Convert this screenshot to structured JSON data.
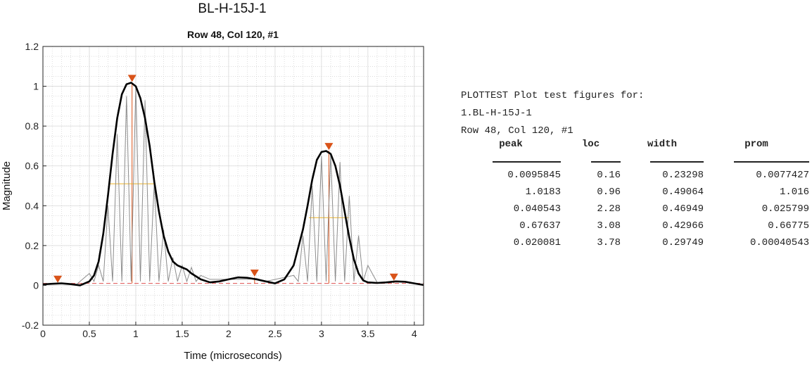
{
  "figure_title": "BL-H-15J-1",
  "chart_data": {
    "type": "line",
    "title": "Row 48, Col 120, #1",
    "xlabel": "Time (microseconds)",
    "ylabel": "Magnitude",
    "xlim": [
      0,
      4.1
    ],
    "ylim": [
      -0.2,
      1.2
    ],
    "x_ticks": [
      0,
      0.5,
      1,
      1.5,
      2,
      2.5,
      3,
      3.5,
      4
    ],
    "y_ticks": [
      -0.2,
      0,
      0.2,
      0.4,
      0.6,
      0.8,
      1,
      1.2
    ],
    "grid": true,
    "minor_grid": true,
    "series": [
      {
        "role": "envelope",
        "color": "#000000",
        "x": [
          0,
          0.1,
          0.2,
          0.3,
          0.4,
          0.5,
          0.55,
          0.6,
          0.65,
          0.7,
          0.75,
          0.8,
          0.85,
          0.9,
          0.95,
          1.0,
          1.05,
          1.1,
          1.15,
          1.2,
          1.25,
          1.3,
          1.35,
          1.4,
          1.45,
          1.5,
          1.55,
          1.6,
          1.7,
          1.8,
          1.9,
          2.0,
          2.1,
          2.2,
          2.3,
          2.4,
          2.5,
          2.6,
          2.7,
          2.8,
          2.85,
          2.9,
          2.95,
          3.0,
          3.05,
          3.1,
          3.15,
          3.2,
          3.25,
          3.3,
          3.35,
          3.4,
          3.45,
          3.5,
          3.6,
          3.7,
          3.8,
          3.9,
          4.0,
          4.1
        ],
        "y": [
          0.005,
          0.008,
          0.01,
          0.006,
          0.0,
          0.02,
          0.05,
          0.12,
          0.26,
          0.45,
          0.66,
          0.84,
          0.96,
          1.01,
          1.018,
          1.0,
          0.94,
          0.84,
          0.7,
          0.52,
          0.37,
          0.25,
          0.17,
          0.12,
          0.1,
          0.09,
          0.08,
          0.06,
          0.03,
          0.015,
          0.02,
          0.03,
          0.04,
          0.038,
          0.03,
          0.02,
          0.01,
          0.03,
          0.1,
          0.28,
          0.4,
          0.53,
          0.63,
          0.67,
          0.675,
          0.66,
          0.6,
          0.5,
          0.37,
          0.24,
          0.13,
          0.06,
          0.025,
          0.015,
          0.012,
          0.015,
          0.02,
          0.018,
          0.01,
          0.002
        ]
      },
      {
        "role": "signal",
        "color": "#8c8c8c",
        "x": [
          0.35,
          0.45,
          0.5,
          0.55,
          0.6,
          0.65,
          0.7,
          0.75,
          0.8,
          0.85,
          0.9,
          0.95,
          1.0,
          1.05,
          1.1,
          1.15,
          1.2,
          1.25,
          1.3,
          1.35,
          1.4,
          1.45,
          1.5,
          1.55,
          1.6,
          1.65,
          1.7,
          1.8,
          2.2,
          2.3,
          2.4,
          2.7,
          2.75,
          2.8,
          2.85,
          2.9,
          2.95,
          3.0,
          3.05,
          3.1,
          3.15,
          3.2,
          3.25,
          3.3,
          3.35,
          3.4,
          3.45,
          3.5,
          3.6
        ],
        "y": [
          0.0,
          0.04,
          0.06,
          0.02,
          0.1,
          0.02,
          0.4,
          0.02,
          0.76,
          0.02,
          0.95,
          0.02,
          1.0,
          0.02,
          0.93,
          0.02,
          0.52,
          0.02,
          0.28,
          0.02,
          0.14,
          0.02,
          0.1,
          0.02,
          0.09,
          0.02,
          0.05,
          0.03,
          0.03,
          0.035,
          0.02,
          0.05,
          0.02,
          0.25,
          0.02,
          0.5,
          0.02,
          0.65,
          0.02,
          0.66,
          0.02,
          0.62,
          0.02,
          0.45,
          0.02,
          0.25,
          0.02,
          0.1,
          0.015
        ]
      }
    ],
    "threshold": {
      "y": 0.01,
      "color": "#e05050",
      "style": "dashed"
    },
    "peaks": [
      {
        "loc": 0.16,
        "peak": 0.0095845
      },
      {
        "loc": 0.96,
        "peak": 1.0183
      },
      {
        "loc": 2.28,
        "peak": 0.040543
      },
      {
        "loc": 3.08,
        "peak": 0.67637
      },
      {
        "loc": 3.78,
        "peak": 0.020081
      }
    ],
    "peak_marker_color": "#d95319",
    "widths": [
      {
        "center": 0.96,
        "width": 0.49064,
        "height": 0.51
      },
      {
        "center": 3.08,
        "width": 0.42966,
        "height": 0.34
      }
    ],
    "width_color": "#edb120"
  },
  "console": {
    "lines": [
      "PLOTTEST Plot test figures for:",
      "1.BL-H-15J-1",
      "Row 48, Col 120, #1"
    ],
    "table": {
      "headers": [
        "peak",
        "loc",
        "width",
        "prom"
      ],
      "rows": [
        [
          "0.0095845",
          "0.16",
          "0.23298",
          "0.0077427"
        ],
        [
          "1.0183",
          "0.96",
          "0.49064",
          "1.016"
        ],
        [
          "0.040543",
          "2.28",
          "0.46949",
          "0.025799"
        ],
        [
          "0.67637",
          "3.08",
          "0.42966",
          "0.66775"
        ],
        [
          "0.020081",
          "3.78",
          "0.29749",
          "0.00040543"
        ]
      ]
    }
  }
}
